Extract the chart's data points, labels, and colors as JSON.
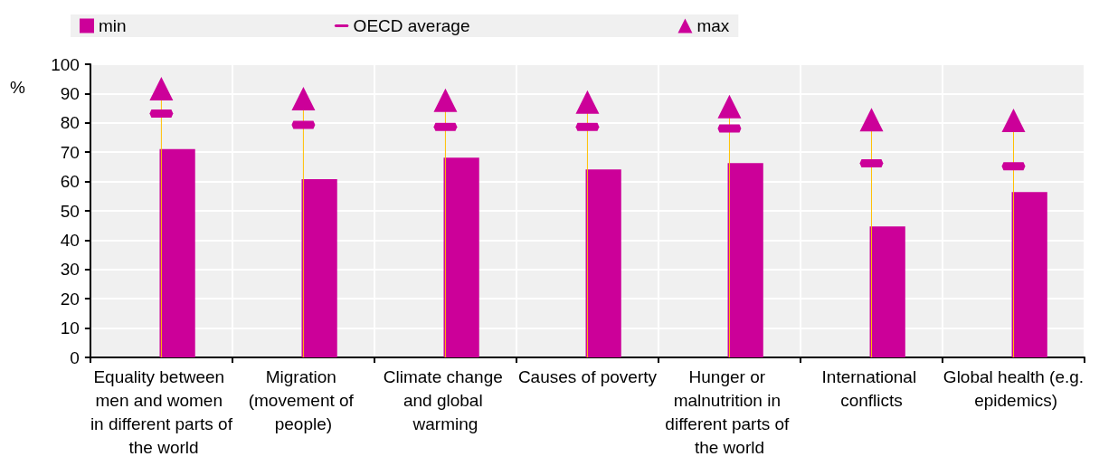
{
  "chart_data": {
    "type": "bar",
    "ylabel": "%",
    "categories": [
      "Equality between men and women in different parts of the world",
      "Migration (movement of people)",
      "Climate change and global warming",
      "Causes of poverty",
      "Hunger or malnutrition in different parts of the world",
      "International conflicts",
      "Global health (e.g. epidemics)"
    ],
    "series": [
      {
        "name": "min",
        "color": "#cc0099",
        "values": [
          71.1,
          60.8,
          68.1,
          64.1,
          66.3,
          44.7,
          56.4
        ]
      },
      {
        "name": "OECD average",
        "type": "scatter",
        "color": "#cc0099",
        "values": [
          83.2,
          79.3,
          78.6,
          78.6,
          78.1,
          66.2,
          65.2
        ]
      },
      {
        "name": "max",
        "type": "scatter",
        "marker": "triangle",
        "color": "#cc0099",
        "values": [
          91.7,
          88.3,
          87.7,
          87.1,
          85.6,
          81.1,
          80.9
        ]
      }
    ],
    "ylim": [
      0,
      100
    ],
    "yticks": [
      0,
      10,
      20,
      30,
      40,
      50,
      60,
      70,
      80,
      90,
      100
    ],
    "grid": true,
    "legend": "top"
  }
}
